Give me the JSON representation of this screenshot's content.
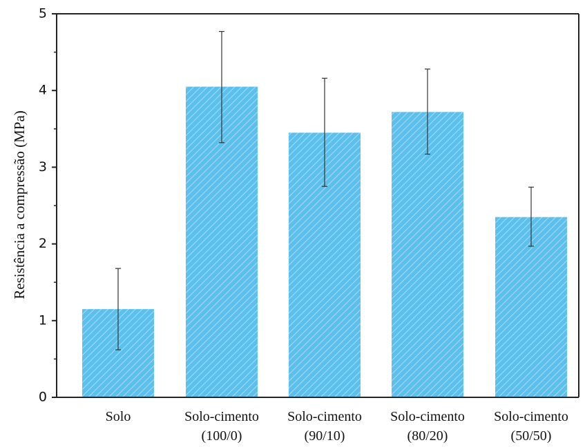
{
  "chart_data": {
    "type": "bar",
    "title": "",
    "xlabel": "",
    "ylabel": "Resistência a compressão (MPa)",
    "ylim": [
      0,
      5
    ],
    "yticks": [
      0,
      1,
      2,
      3,
      4,
      5
    ],
    "grid": false,
    "categories": [
      [
        "Solo"
      ],
      [
        "Solo-cimento",
        "(100/0)"
      ],
      [
        "Solo-cimento",
        "(90/10)"
      ],
      [
        "Solo-cimento",
        "(80/20)"
      ],
      [
        "Solo-cimento",
        "(50/50)"
      ]
    ],
    "values": [
      1.15,
      4.05,
      3.45,
      3.72,
      2.35
    ],
    "error_low": [
      0.62,
      3.32,
      2.75,
      3.17,
      1.97
    ],
    "error_high": [
      1.68,
      4.77,
      4.16,
      4.28,
      2.74
    ],
    "bar_color": "#5bc0eb",
    "hatch_color": "#a9dcf6",
    "axis_color": "#222222"
  }
}
